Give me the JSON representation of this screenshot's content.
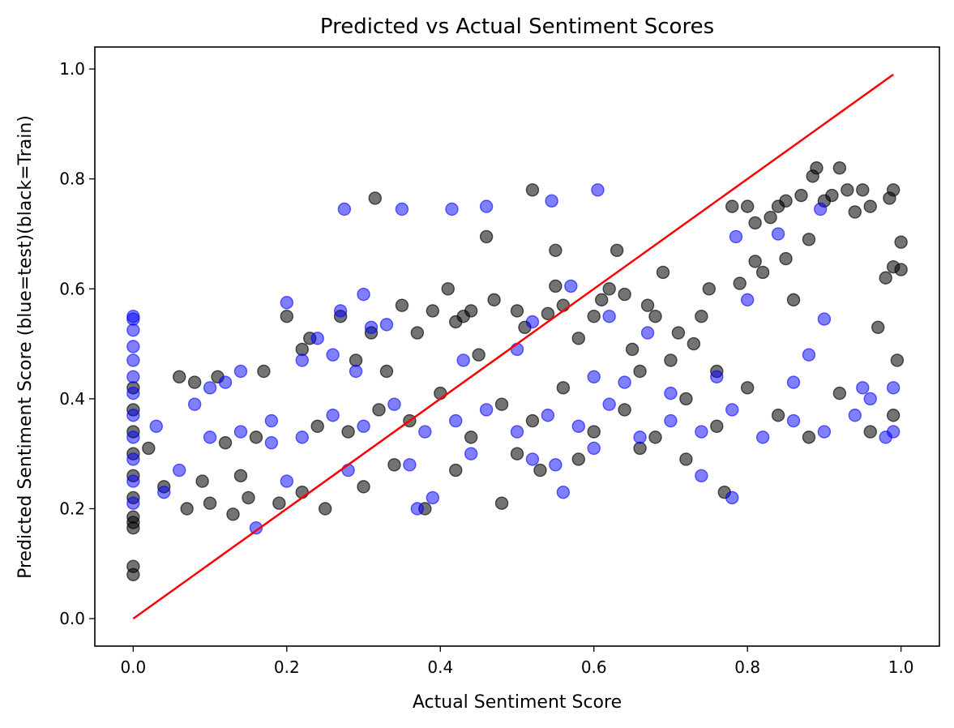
{
  "chart_data": {
    "type": "scatter",
    "title": "Predicted vs Actual Sentiment Scores",
    "xlabel": "Actual Sentiment Score",
    "ylabel": "Predicted Sentiment Score (blue=test)(black=Train)",
    "xlim": [
      -0.05,
      1.05
    ],
    "ylim": [
      -0.05,
      1.04
    ],
    "xticks": [
      0.0,
      0.2,
      0.4,
      0.6,
      0.8,
      1.0
    ],
    "xtick_labels": [
      "0.0",
      "0.2",
      "0.4",
      "0.6",
      "0.8",
      "1.0"
    ],
    "yticks": [
      0.0,
      0.2,
      0.4,
      0.6,
      0.8,
      1.0
    ],
    "ytick_labels": [
      "0.0",
      "0.2",
      "0.4",
      "0.6",
      "0.8",
      "1.0"
    ],
    "grid": false,
    "series": [
      {
        "color": "#000000",
        "alpha": 0.55,
        "points": [
          [
            0.0,
            0.08
          ],
          [
            0.0,
            0.095
          ],
          [
            0.0,
            0.165
          ],
          [
            0.0,
            0.175
          ],
          [
            0.0,
            0.185
          ],
          [
            0.0,
            0.22
          ],
          [
            0.0,
            0.26
          ],
          [
            0.0,
            0.3
          ],
          [
            0.0,
            0.34
          ],
          [
            0.0,
            0.38
          ],
          [
            0.0,
            0.42
          ],
          [
            0.02,
            0.31
          ],
          [
            0.04,
            0.24
          ],
          [
            0.06,
            0.44
          ],
          [
            0.07,
            0.2
          ],
          [
            0.08,
            0.43
          ],
          [
            0.09,
            0.25
          ],
          [
            0.1,
            0.21
          ],
          [
            0.11,
            0.44
          ],
          [
            0.13,
            0.19
          ],
          [
            0.15,
            0.22
          ],
          [
            0.17,
            0.45
          ],
          [
            0.19,
            0.21
          ],
          [
            0.2,
            0.55
          ],
          [
            0.22,
            0.49
          ],
          [
            0.23,
            0.51
          ],
          [
            0.25,
            0.2
          ],
          [
            0.27,
            0.55
          ],
          [
            0.29,
            0.47
          ],
          [
            0.31,
            0.52
          ],
          [
            0.315,
            0.765
          ],
          [
            0.33,
            0.45
          ],
          [
            0.35,
            0.57
          ],
          [
            0.37,
            0.52
          ],
          [
            0.38,
            0.2
          ],
          [
            0.39,
            0.56
          ],
          [
            0.41,
            0.6
          ],
          [
            0.42,
            0.54
          ],
          [
            0.43,
            0.55
          ],
          [
            0.44,
            0.56
          ],
          [
            0.45,
            0.48
          ],
          [
            0.46,
            0.695
          ],
          [
            0.47,
            0.58
          ],
          [
            0.48,
            0.21
          ],
          [
            0.5,
            0.56
          ],
          [
            0.51,
            0.53
          ],
          [
            0.52,
            0.78
          ],
          [
            0.53,
            0.27
          ],
          [
            0.54,
            0.555
          ],
          [
            0.55,
            0.605
          ],
          [
            0.55,
            0.67
          ],
          [
            0.56,
            0.57
          ],
          [
            0.58,
            0.51
          ],
          [
            0.6,
            0.55
          ],
          [
            0.61,
            0.58
          ],
          [
            0.62,
            0.6
          ],
          [
            0.63,
            0.67
          ],
          [
            0.64,
            0.59
          ],
          [
            0.65,
            0.49
          ],
          [
            0.66,
            0.45
          ],
          [
            0.67,
            0.57
          ],
          [
            0.68,
            0.55
          ],
          [
            0.69,
            0.63
          ],
          [
            0.7,
            0.47
          ],
          [
            0.71,
            0.52
          ],
          [
            0.72,
            0.29
          ],
          [
            0.73,
            0.5
          ],
          [
            0.74,
            0.55
          ],
          [
            0.75,
            0.6
          ],
          [
            0.76,
            0.45
          ],
          [
            0.77,
            0.23
          ],
          [
            0.78,
            0.75
          ],
          [
            0.79,
            0.61
          ],
          [
            0.8,
            0.75
          ],
          [
            0.81,
            0.72
          ],
          [
            0.81,
            0.65
          ],
          [
            0.82,
            0.63
          ],
          [
            0.83,
            0.73
          ],
          [
            0.84,
            0.75
          ],
          [
            0.85,
            0.76
          ],
          [
            0.85,
            0.655
          ],
          [
            0.86,
            0.58
          ],
          [
            0.87,
            0.77
          ],
          [
            0.88,
            0.69
          ],
          [
            0.885,
            0.805
          ],
          [
            0.89,
            0.82
          ],
          [
            0.9,
            0.76
          ],
          [
            0.91,
            0.77
          ],
          [
            0.92,
            0.82
          ],
          [
            0.93,
            0.78
          ],
          [
            0.94,
            0.74
          ],
          [
            0.95,
            0.78
          ],
          [
            0.96,
            0.75
          ],
          [
            0.97,
            0.53
          ],
          [
            0.98,
            0.62
          ],
          [
            0.99,
            0.64
          ],
          [
            0.99,
            0.78
          ],
          [
            1.0,
            0.685
          ],
          [
            1.0,
            0.635
          ],
          [
            0.985,
            0.765
          ],
          [
            0.995,
            0.47
          ],
          [
            0.12,
            0.32
          ],
          [
            0.16,
            0.33
          ],
          [
            0.24,
            0.35
          ],
          [
            0.28,
            0.34
          ],
          [
            0.32,
            0.38
          ],
          [
            0.36,
            0.36
          ],
          [
            0.4,
            0.41
          ],
          [
            0.44,
            0.33
          ],
          [
            0.48,
            0.39
          ],
          [
            0.52,
            0.36
          ],
          [
            0.56,
            0.42
          ],
          [
            0.6,
            0.34
          ],
          [
            0.64,
            0.38
          ],
          [
            0.68,
            0.33
          ],
          [
            0.72,
            0.4
          ],
          [
            0.76,
            0.35
          ],
          [
            0.8,
            0.42
          ],
          [
            0.84,
            0.37
          ],
          [
            0.88,
            0.33
          ],
          [
            0.92,
            0.41
          ],
          [
            0.96,
            0.34
          ],
          [
            0.99,
            0.37
          ],
          [
            0.14,
            0.26
          ],
          [
            0.22,
            0.23
          ],
          [
            0.3,
            0.24
          ],
          [
            0.34,
            0.28
          ],
          [
            0.42,
            0.27
          ],
          [
            0.5,
            0.3
          ],
          [
            0.58,
            0.29
          ],
          [
            0.66,
            0.31
          ]
        ]
      },
      {
        "color": "#0000ff",
        "alpha": 0.5,
        "points": [
          [
            0.0,
            0.55
          ],
          [
            0.0,
            0.545
          ],
          [
            0.0,
            0.525
          ],
          [
            0.0,
            0.495
          ],
          [
            0.0,
            0.47
          ],
          [
            0.0,
            0.44
          ],
          [
            0.0,
            0.41
          ],
          [
            0.0,
            0.37
          ],
          [
            0.0,
            0.33
          ],
          [
            0.0,
            0.29
          ],
          [
            0.0,
            0.25
          ],
          [
            0.0,
            0.21
          ],
          [
            0.03,
            0.35
          ],
          [
            0.04,
            0.23
          ],
          [
            0.06,
            0.27
          ],
          [
            0.08,
            0.39
          ],
          [
            0.1,
            0.42
          ],
          [
            0.12,
            0.43
          ],
          [
            0.14,
            0.45
          ],
          [
            0.16,
            0.165
          ],
          [
            0.18,
            0.32
          ],
          [
            0.2,
            0.575
          ],
          [
            0.22,
            0.47
          ],
          [
            0.24,
            0.51
          ],
          [
            0.26,
            0.48
          ],
          [
            0.27,
            0.56
          ],
          [
            0.275,
            0.745
          ],
          [
            0.29,
            0.45
          ],
          [
            0.3,
            0.59
          ],
          [
            0.31,
            0.53
          ],
          [
            0.33,
            0.535
          ],
          [
            0.35,
            0.745
          ],
          [
            0.37,
            0.2
          ],
          [
            0.39,
            0.22
          ],
          [
            0.415,
            0.745
          ],
          [
            0.43,
            0.47
          ],
          [
            0.46,
            0.75
          ],
          [
            0.5,
            0.49
          ],
          [
            0.52,
            0.54
          ],
          [
            0.545,
            0.76
          ],
          [
            0.55,
            0.28
          ],
          [
            0.57,
            0.605
          ],
          [
            0.56,
            0.23
          ],
          [
            0.6,
            0.44
          ],
          [
            0.605,
            0.78
          ],
          [
            0.62,
            0.55
          ],
          [
            0.64,
            0.43
          ],
          [
            0.67,
            0.52
          ],
          [
            0.7,
            0.41
          ],
          [
            0.74,
            0.26
          ],
          [
            0.76,
            0.44
          ],
          [
            0.78,
            0.22
          ],
          [
            0.785,
            0.695
          ],
          [
            0.8,
            0.58
          ],
          [
            0.84,
            0.7
          ],
          [
            0.86,
            0.43
          ],
          [
            0.88,
            0.48
          ],
          [
            0.9,
            0.545
          ],
          [
            0.895,
            0.745
          ],
          [
            0.95,
            0.42
          ],
          [
            0.96,
            0.4
          ],
          [
            0.99,
            0.42
          ],
          [
            0.99,
            0.34
          ],
          [
            0.1,
            0.33
          ],
          [
            0.14,
            0.34
          ],
          [
            0.18,
            0.36
          ],
          [
            0.22,
            0.33
          ],
          [
            0.26,
            0.37
          ],
          [
            0.3,
            0.35
          ],
          [
            0.34,
            0.39
          ],
          [
            0.38,
            0.34
          ],
          [
            0.42,
            0.36
          ],
          [
            0.46,
            0.38
          ],
          [
            0.5,
            0.34
          ],
          [
            0.54,
            0.37
          ],
          [
            0.58,
            0.35
          ],
          [
            0.62,
            0.39
          ],
          [
            0.66,
            0.33
          ],
          [
            0.7,
            0.36
          ],
          [
            0.74,
            0.34
          ],
          [
            0.78,
            0.38
          ],
          [
            0.82,
            0.33
          ],
          [
            0.86,
            0.36
          ],
          [
            0.9,
            0.34
          ],
          [
            0.94,
            0.37
          ],
          [
            0.98,
            0.33
          ],
          [
            0.2,
            0.25
          ],
          [
            0.28,
            0.27
          ],
          [
            0.36,
            0.28
          ],
          [
            0.44,
            0.3
          ],
          [
            0.52,
            0.29
          ],
          [
            0.6,
            0.31
          ]
        ]
      }
    ],
    "line": {
      "color": "#ff0000",
      "x": [
        0.0,
        0.99
      ],
      "y": [
        0.0,
        0.99
      ]
    }
  }
}
